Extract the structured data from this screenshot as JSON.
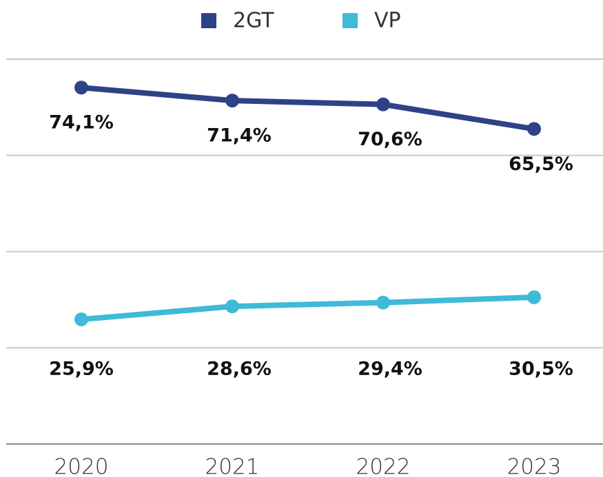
{
  "chart_data": {
    "type": "line",
    "categories": [
      "2020",
      "2021",
      "2022",
      "2023"
    ],
    "series": [
      {
        "name": "2GT",
        "color": "#2e4288",
        "values": [
          74.1,
          71.4,
          70.6,
          65.5
        ],
        "value_labels": [
          "74,1%",
          "71,4%",
          "70,6%",
          "65,5%"
        ]
      },
      {
        "name": "VP",
        "color": "#3fbad8",
        "values": [
          25.9,
          28.6,
          29.4,
          30.5
        ],
        "value_labels": [
          "25,9%",
          "28,6%",
          "29,4%",
          "30,5%"
        ]
      }
    ],
    "ylim": [
      0,
      80
    ],
    "yticks": [
      0,
      20,
      40,
      60,
      80
    ],
    "grid": true,
    "legend": "top"
  }
}
